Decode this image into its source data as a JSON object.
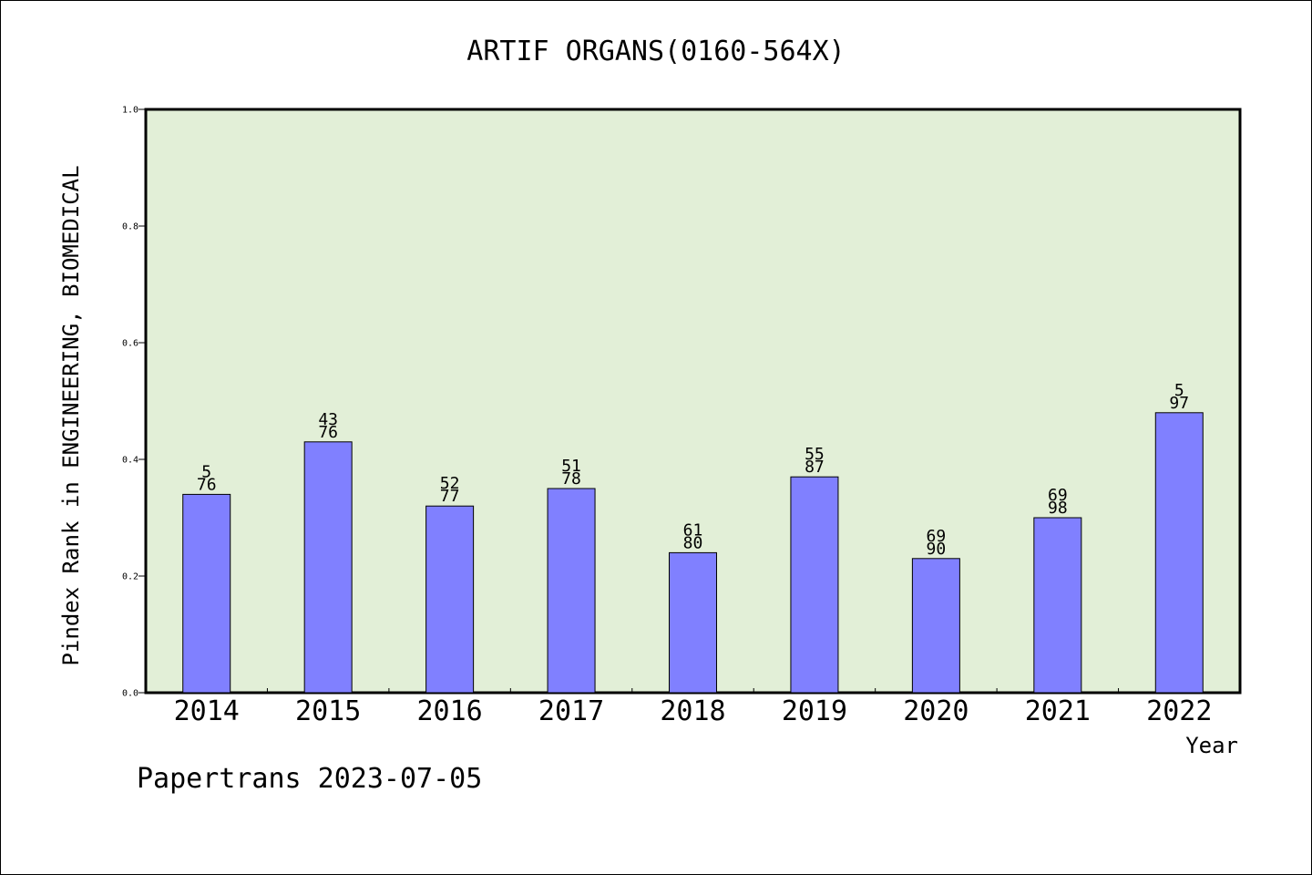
{
  "chart_data": {
    "type": "bar",
    "title": "ARTIF ORGANS(0160-564X)",
    "xlabel": "Year",
    "ylabel": "Pindex Rank in ENGINEERING, BIOMEDICAL",
    "categories": [
      "2014",
      "2015",
      "2016",
      "2017",
      "2018",
      "2019",
      "2020",
      "2021",
      "2022"
    ],
    "values": [
      0.34,
      0.43,
      0.32,
      0.35,
      0.24,
      0.37,
      0.23,
      0.3,
      0.48
    ],
    "rank_labels": [
      "5",
      "43",
      "52",
      "51",
      "61",
      "55",
      "69",
      "69",
      "5"
    ],
    "total_labels": [
      "76",
      "76",
      "77",
      "78",
      "80",
      "87",
      "90",
      "98",
      "97"
    ],
    "ylim": [
      0,
      1.0
    ],
    "yticks": [
      "0.0",
      "0.2",
      "0.4",
      "0.6",
      "0.8",
      "1.0"
    ],
    "grid": false,
    "legend": "none",
    "colors": {
      "bar": "#8080ff",
      "plot_background": "#e2efd7",
      "axis": "#000000"
    }
  },
  "footer": {
    "text": "Papertrans 2023-07-05"
  }
}
